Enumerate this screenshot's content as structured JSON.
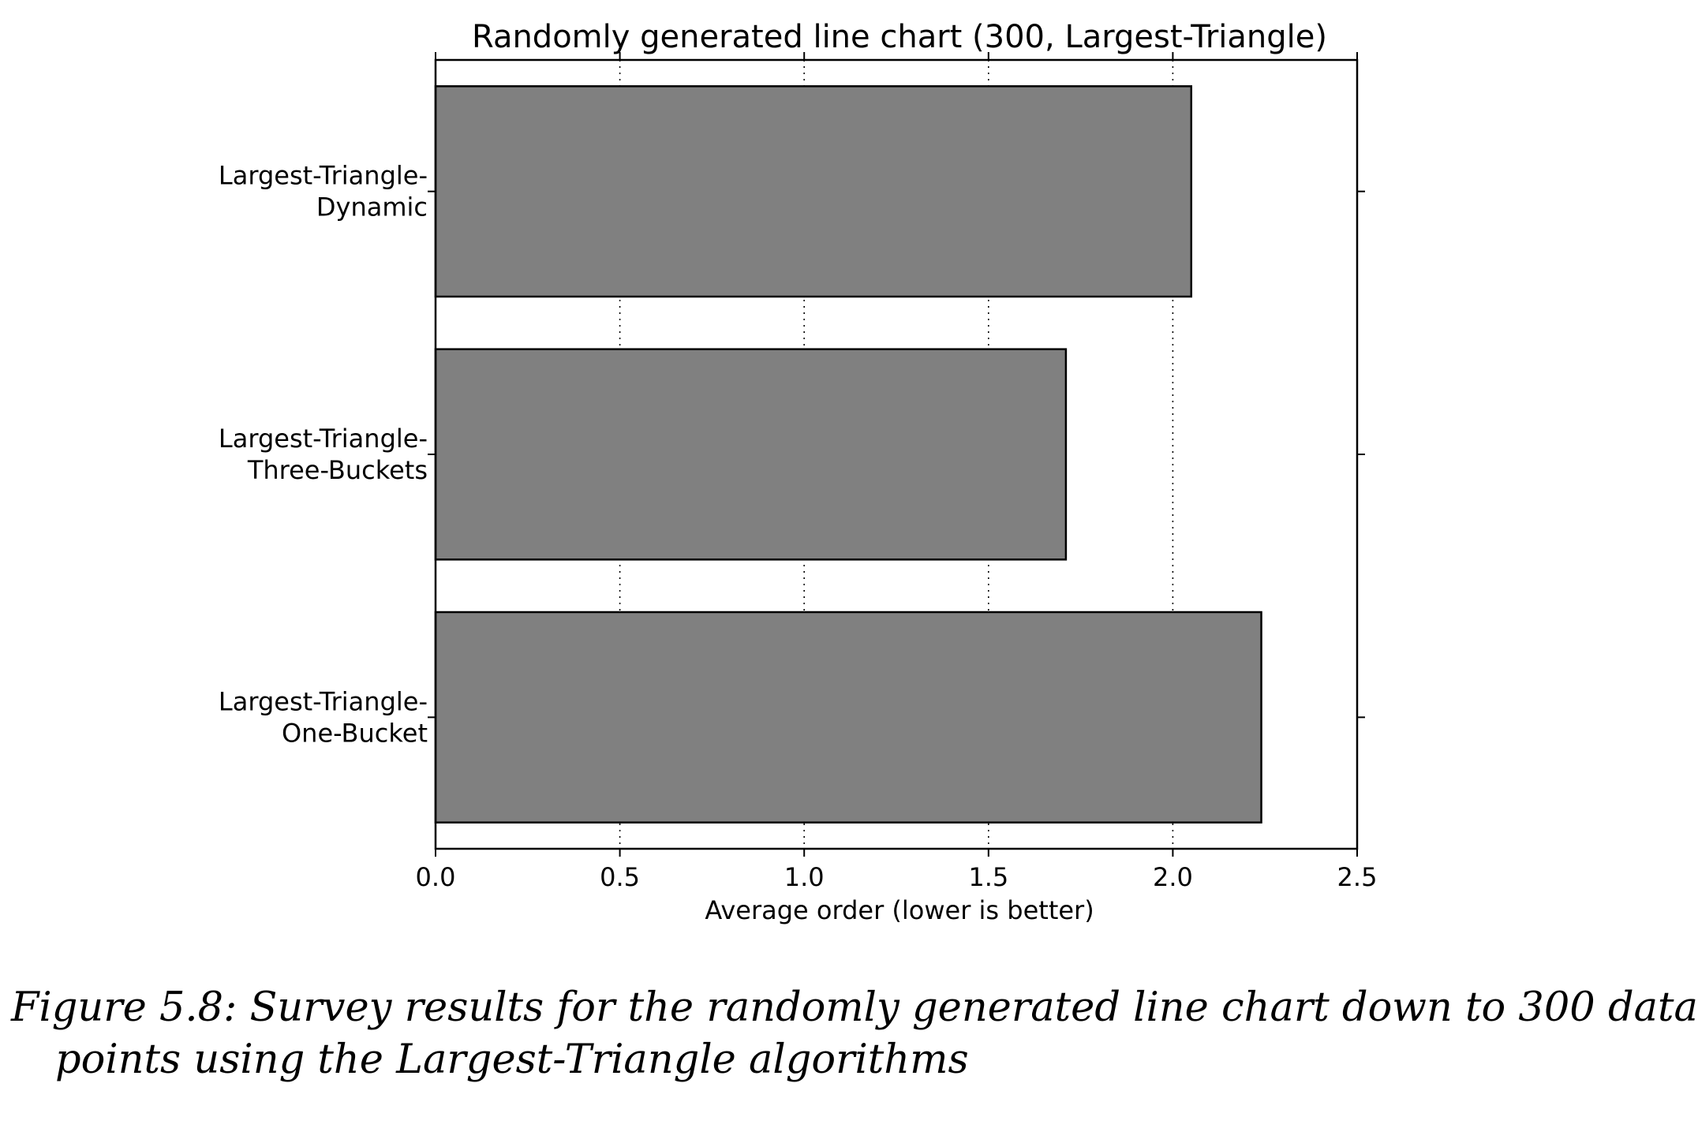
{
  "chart_data": {
    "type": "bar",
    "orientation": "horizontal",
    "title": "Randomly generated line chart (300, Largest-Triangle)",
    "xlabel": "Average order (lower is better)",
    "ylabel": "",
    "categories": [
      [
        "Largest-Triangle-",
        "Dynamic"
      ],
      [
        "Largest-Triangle-",
        "Three-Buckets"
      ],
      [
        "Largest-Triangle-",
        "One-Bucket"
      ]
    ],
    "values": [
      2.05,
      1.71,
      2.24
    ],
    "xlim": [
      0,
      2.5
    ],
    "xticks": [
      0.0,
      0.5,
      1.0,
      1.5,
      2.0,
      2.5
    ],
    "xtick_labels": [
      "0.0",
      "0.5",
      "1.0",
      "1.5",
      "2.0",
      "2.5"
    ],
    "grid": "vertical-dotted",
    "bar_color": "#808080",
    "edge_color": "#000000"
  },
  "caption": {
    "line1": "Figure 5.8: Survey results for the randomly generated line chart down to 300 data",
    "line2": "points using the Largest-Triangle algorithms"
  }
}
